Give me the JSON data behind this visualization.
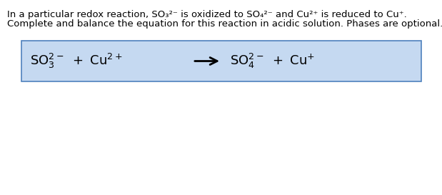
{
  "bg_color": "#ffffff",
  "box_bg_color": "#c5d9f1",
  "box_edge_color": "#4f81bd",
  "line1": "In a particular redox reaction, SO₃²⁻ is oxidized to SO₄²⁻ and Cu²⁺ is reduced to Cu⁺.",
  "line2": "Complete and balance the equation for this reaction in acidic solution. Phases are optional.",
  "text_color": "#000000",
  "header_fontsize": 9.5,
  "equation_fontsize": 13,
  "figwidth": 6.19,
  "figheight": 2.73,
  "dpi": 100
}
